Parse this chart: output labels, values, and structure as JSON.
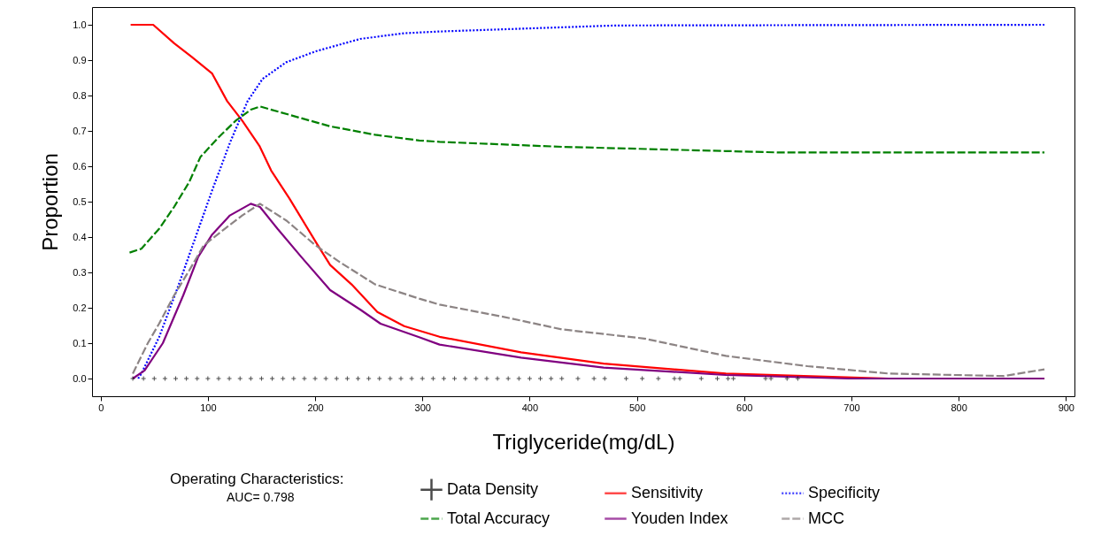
{
  "chart_data": {
    "type": "line",
    "xlabel": "Triglyceride(mg/dL)",
    "ylabel": "Proportion",
    "xlim": [
      -8,
      908
    ],
    "ylim": [
      -0.05,
      1.05
    ],
    "xticks": [
      0,
      100,
      200,
      300,
      400,
      500,
      600,
      700,
      800,
      900
    ],
    "yticks": [
      {
        "value": 0,
        "label": "0.0"
      },
      0.1,
      0.2,
      0.3,
      0.4,
      0.5,
      0.6,
      0.7,
      0.8,
      0.9,
      {
        "value": 1,
        "label": "1.0"
      }
    ],
    "grid": false,
    "legend": "bottom",
    "annotations": [
      "Operating Characteristics:",
      "AUC=   0.798"
    ],
    "series": [
      {
        "name": "Data Density",
        "type": "scatter",
        "marker": "cross",
        "color": "#000000",
        "x": [
          30,
          40,
          50,
          60,
          70,
          80,
          90,
          100,
          110,
          120,
          130,
          140,
          150,
          160,
          170,
          180,
          190,
          200,
          210,
          220,
          230,
          240,
          250,
          260,
          270,
          280,
          290,
          300,
          310,
          320,
          330,
          340,
          350,
          360,
          370,
          380,
          390,
          400,
          410,
          420,
          430,
          445,
          460,
          470,
          490,
          505,
          520,
          535,
          540,
          560,
          575,
          585,
          590,
          620,
          625,
          640,
          650
        ],
        "values": [
          0,
          0,
          0,
          0,
          0,
          0,
          0,
          0,
          0,
          0,
          0,
          0,
          0,
          0,
          0,
          0,
          0,
          0,
          0,
          0,
          0,
          0,
          0,
          0,
          0,
          0,
          0,
          0,
          0,
          0,
          0,
          0,
          0,
          0,
          0,
          0,
          0,
          0,
          0,
          0,
          0,
          0,
          0,
          0,
          0,
          0,
          0,
          0,
          0,
          0,
          0,
          0,
          0,
          0,
          0,
          0,
          0
        ]
      },
      {
        "name": "Sensitivity",
        "line_style": "solid",
        "color": "#ff0000",
        "x": [
          28,
          49,
          68.5,
          85,
          104,
          118,
          132,
          148,
          159,
          176,
          187,
          201,
          214,
          234,
          258,
          283,
          316,
          392,
          469,
          583,
          735,
          880
        ],
        "values": [
          1.0,
          1.0,
          0.948,
          0.909,
          0.862,
          0.784,
          0.729,
          0.658,
          0.588,
          0.509,
          0.454,
          0.384,
          0.321,
          0.266,
          0.188,
          0.148,
          0.118,
          0.074,
          0.042,
          0.014,
          0.0,
          0.0
        ]
      },
      {
        "name": "Specificity",
        "line_style": "dotted",
        "color": "#0000ff",
        "x": [
          35,
          38,
          54.5,
          71,
          87.5,
          104,
          120.5,
          137,
          151,
          173,
          200.6,
          242,
          283,
          316,
          480,
          880
        ],
        "values": [
          0.0,
          0.014,
          0.117,
          0.25,
          0.391,
          0.532,
          0.666,
          0.784,
          0.847,
          0.894,
          0.925,
          0.96,
          0.976,
          0.981,
          0.998,
          1.0
        ]
      },
      {
        "name": "Total Accuracy",
        "line_style": "dashed",
        "color": "#008000",
        "x": [
          27,
          38,
          54.5,
          68.5,
          82.5,
          93,
          110,
          126,
          140,
          148.6,
          187,
          214,
          256,
          297,
          316,
          430,
          583,
          632.5,
          880
        ],
        "values": [
          0.356,
          0.367,
          0.423,
          0.485,
          0.555,
          0.626,
          0.682,
          0.729,
          0.76,
          0.769,
          0.736,
          0.713,
          0.689,
          0.673,
          0.669,
          0.655,
          0.643,
          0.639,
          0.639
        ]
      },
      {
        "name": "Youden Index",
        "line_style": "solid",
        "color": "#800080",
        "x": [
          30,
          41,
          58,
          77,
          91,
          104,
          120.5,
          140,
          148.6,
          165,
          187,
          214,
          242,
          261,
          297,
          316,
          392,
          469,
          583,
          697,
          880
        ],
        "values": [
          0.0,
          0.023,
          0.1,
          0.235,
          0.344,
          0.407,
          0.461,
          0.494,
          0.485,
          0.423,
          0.344,
          0.25,
          0.195,
          0.155,
          0.117,
          0.096,
          0.059,
          0.031,
          0.01,
          0.0,
          0.0
        ]
      },
      {
        "name": "MCC",
        "line_style": "dashed",
        "color": "#8c8484",
        "x": [
          30,
          44,
          54.5,
          68.5,
          82.5,
          96,
          115.6,
          132,
          148.6,
          173,
          200.6,
          223,
          256,
          297,
          316,
          373,
          430,
          507,
          583,
          659,
          735,
          842,
          880
        ],
        "values": [
          0.014,
          0.1,
          0.155,
          0.235,
          0.305,
          0.376,
          0.423,
          0.461,
          0.494,
          0.447,
          0.376,
          0.329,
          0.266,
          0.226,
          0.209,
          0.176,
          0.139,
          0.113,
          0.064,
          0.035,
          0.014,
          0.007,
          0.026
        ]
      }
    ]
  }
}
